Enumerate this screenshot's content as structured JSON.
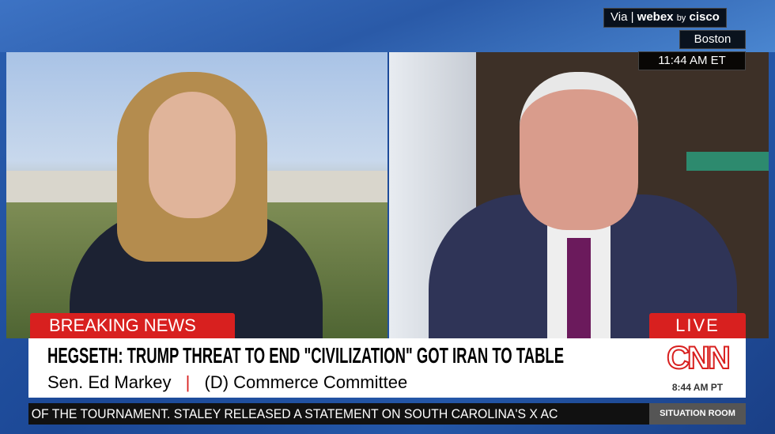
{
  "overlay": {
    "via": "Via",
    "webex": "webex",
    "by": "by",
    "cisco": "cisco",
    "location": "Boston",
    "time_et": "11:44 AM ET"
  },
  "lower_third": {
    "breaking": "BREAKING NEWS",
    "live": "LIVE",
    "headline": "HEGSETH: TRUMP THREAT TO END \"CIVILIZATION\" GOT IRAN TO TABLE",
    "guest_name": "Sen. Ed Markey",
    "separator": "|",
    "guest_title": "(D) Commerce Committee",
    "network": "CNN",
    "time_pt": "8:44 AM PT"
  },
  "ticker": {
    "text": "OF THE TOURNAMENT. STALEY RELEASED A STATEMENT ON SOUTH CAROLINA'S X AC",
    "show": "SITUATION ROOM"
  },
  "colors": {
    "cnn_red": "#d8201f",
    "background_blue": "#1d4d9a"
  }
}
